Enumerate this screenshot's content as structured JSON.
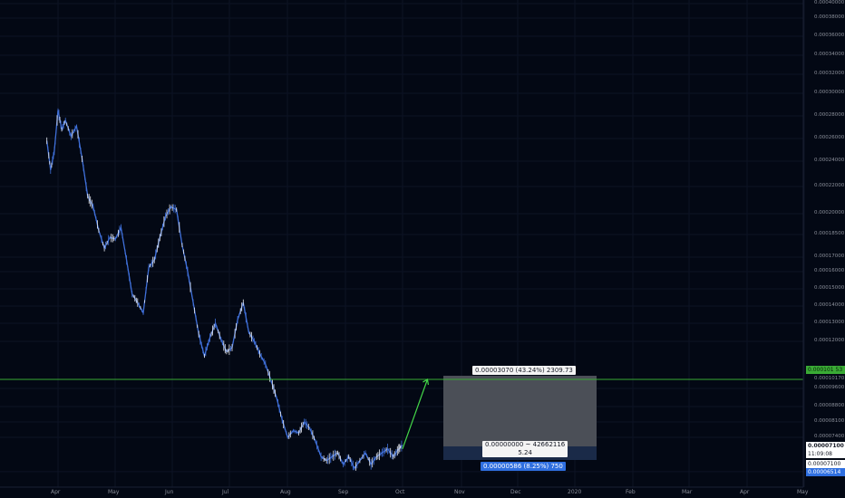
{
  "chart_data": {
    "type": "line",
    "x_tick_labels": [
      "Apr",
      "May",
      "Jun",
      "Jul",
      "Aug",
      "Sep",
      "Oct",
      "Nov",
      "Dec",
      "2020",
      "Feb",
      "Mar",
      "Apr",
      "May"
    ],
    "y_tick_labels": [
      "0.00040000",
      "0.00038000",
      "0.00036000",
      "0.00034000",
      "0.00032000",
      "0.00030000",
      "0.00028000",
      "0.00026000",
      "0.00024000",
      "0.00022000",
      "0.00020000",
      "0.00018500",
      "0.00017000",
      "0.00016000",
      "0.00015000",
      "0.00014000",
      "0.00013000",
      "0.00012000",
      "0.00010170",
      "0.00009600",
      "0.00008800",
      "0.00008100",
      "0.00007400",
      "0.00006514"
    ],
    "series": [
      {
        "color": "#3f6fd8",
        "x": [
          "Mar 26",
          "Mar 28",
          "Mar 30",
          "Apr 1",
          "Apr 3",
          "Apr 5",
          "Apr 8",
          "Apr 11",
          "Apr 14",
          "Apr 17",
          "Apr 20",
          "Apr 23",
          "Apr 26",
          "Apr 29",
          "May 2",
          "May 5",
          "May 8",
          "May 11",
          "May 14",
          "May 17",
          "May 20",
          "May 23",
          "May 26",
          "May 29",
          "Jun 1",
          "Jun 4",
          "Jun 7",
          "Jun 10",
          "Jun 13",
          "Jun 16",
          "Jun 19",
          "Jun 22",
          "Jun 25",
          "Jun 28",
          "Jul 1",
          "Jul 4",
          "Jul 7",
          "Jul 10",
          "Jul 13",
          "Jul 16",
          "Jul 19",
          "Jul 22",
          "Jul 25",
          "Jul 28",
          "Jul 31",
          "Aug 3",
          "Aug 6",
          "Aug 9",
          "Aug 12",
          "Aug 15",
          "Aug 18",
          "Aug 21",
          "Aug 24",
          "Aug 27",
          "Aug 30",
          "Sep 2",
          "Sep 5",
          "Sep 8",
          "Sep 11",
          "Sep 14",
          "Sep 17",
          "Sep 20",
          "Sep 23",
          "Sep 26",
          "Sep 29",
          "Oct 2",
          "Oct 4"
        ],
        "y": [
          0.000258,
          0.000233,
          0.000249,
          0.000285,
          0.000268,
          0.000276,
          0.000262,
          0.000271,
          0.000242,
          0.000213,
          0.000205,
          0.000188,
          0.000176,
          0.000183,
          0.000182,
          0.00019,
          0.000168,
          0.000147,
          0.000142,
          0.000136,
          0.000163,
          0.000168,
          0.000183,
          0.000198,
          0.000205,
          0.000203,
          0.000178,
          0.00016,
          0.000142,
          0.000124,
          0.000113,
          0.000122,
          0.00013,
          0.000121,
          0.000115,
          0.000117,
          0.000132,
          0.000142,
          0.000125,
          0.00012,
          0.000114,
          0.000109,
          0.000101,
          9.2e-05,
          8.2e-05,
          7.4e-05,
          7.7e-05,
          7.6e-05,
          8.1e-05,
          7.8e-05,
          7.3e-05,
          6.9e-05,
          6.8e-05,
          6.9e-05,
          7e-05,
          6.7e-05,
          6.9e-05,
          6.6e-05,
          6.8e-05,
          7e-05,
          6.7e-05,
          6.9e-05,
          7e-05,
          7.1e-05,
          6.9e-05,
          7.1e-05,
          7.2e-05
        ]
      }
    ],
    "projection_arrow": {
      "color": "#43d648",
      "from": {
        "x": "Oct 4",
        "y": 7.1e-05
      },
      "to": {
        "x": "Oct 16",
        "y": 0.0001017
      }
    },
    "level_line": {
      "color": "#3aaa35",
      "y": 0.0001017
    },
    "measure": {
      "top_label": "0.00003070 (43.24%) 2309.73",
      "mid_label_line1": "0.00000000 ~ 42662116",
      "mid_label_line2": "5.24",
      "bottom_label": "0.00000586 (8.25%) 750"
    },
    "price_tags": {
      "green": "0.000101 53",
      "level": "0.00010170",
      "current": "0.00007100",
      "countdown": "11:09:08",
      "current2": "0.00007100",
      "low": "0.00006514"
    }
  },
  "colors": {
    "background": "#030814",
    "axis_text": "#8a8e99",
    "grid": "#0d1324",
    "level": "#3aaa35",
    "measure_upper": "#4b4f57",
    "measure_lower": "#1a2a48",
    "measure_label_blue": "#2f6fe0"
  }
}
